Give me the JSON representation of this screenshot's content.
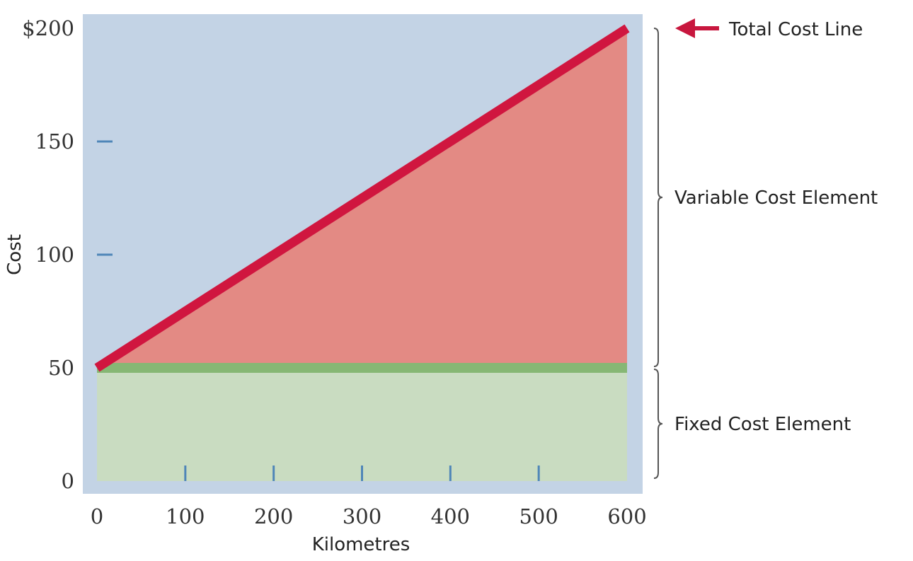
{
  "chart_data": {
    "type": "area",
    "xlabel": "Kilometres",
    "ylabel": "Cost",
    "xlim": [
      0,
      600
    ],
    "ylim": [
      0,
      200
    ],
    "x_ticks": [
      0,
      100,
      200,
      300,
      400,
      500,
      600
    ],
    "x_tick_labels": [
      "0",
      "100",
      "200",
      "300",
      "400",
      "500",
      "600"
    ],
    "y_ticks": [
      0,
      50,
      100,
      150,
      200
    ],
    "y_tick_labels": [
      "0",
      "50",
      "100",
      "150",
      "$200"
    ],
    "series": [
      {
        "name": "Total Cost Line",
        "x": [
          0,
          600
        ],
        "y": [
          50,
          200
        ]
      }
    ],
    "fixed_cost": 50,
    "annotations": [
      {
        "text": "Total Cost Line",
        "target": "total-cost-line"
      },
      {
        "text": "Variable Cost Element",
        "range": [
          50,
          200
        ]
      },
      {
        "text": "Fixed Cost Element",
        "range": [
          0,
          50
        ]
      }
    ],
    "grid": false,
    "colors": {
      "background": "#c3d3e5",
      "total_line": "#d0163f",
      "variable_area": "#e38a84",
      "fixed_area": "#c9dcc1",
      "fixed_line": "#86b774",
      "tick_marks": "#4f86b8",
      "arrow": "#c8173e",
      "brace": "#555555"
    }
  }
}
